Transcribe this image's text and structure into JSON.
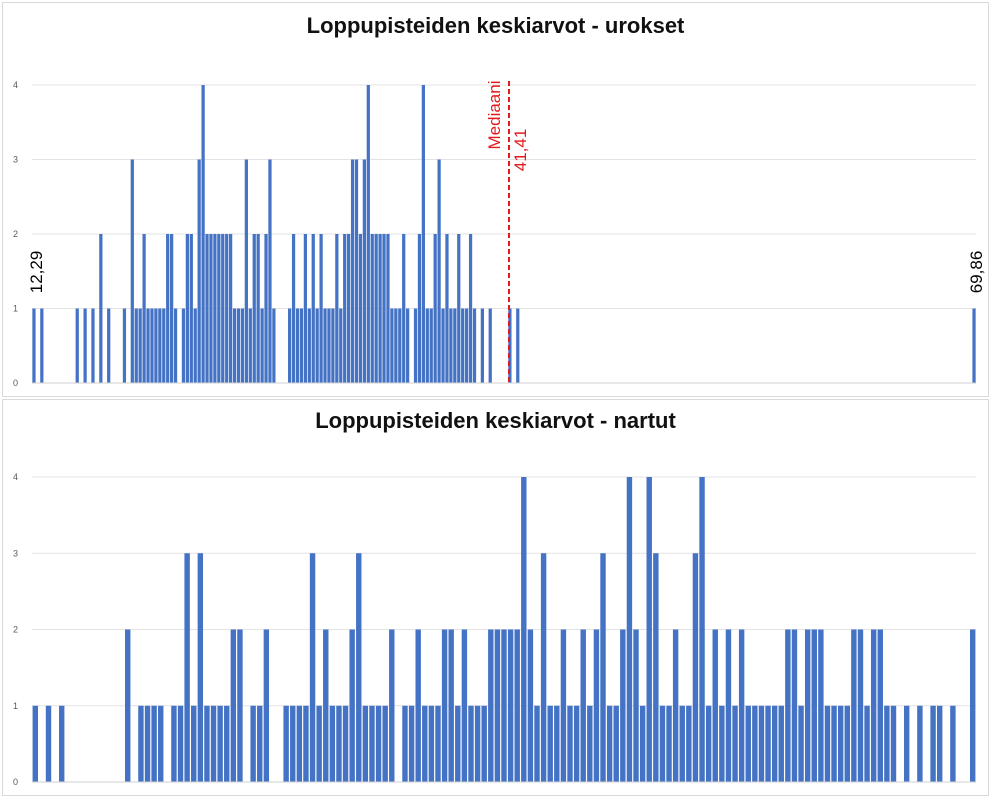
{
  "chart_data": [
    {
      "type": "bar",
      "title": "Loppupisteiden keskiarvot - urokset",
      "ylim": [
        0,
        4
      ],
      "y_ticks": [
        "0",
        "1",
        "2",
        "3",
        "4"
      ],
      "grid": true,
      "bar_color": "#4472c4",
      "values": [
        1,
        0,
        1,
        0,
        0,
        0,
        0,
        0,
        0,
        0,
        0,
        1,
        0,
        1,
        0,
        1,
        0,
        2,
        0,
        1,
        0,
        0,
        0,
        1,
        0,
        3,
        1,
        1,
        2,
        1,
        1,
        1,
        1,
        1,
        2,
        2,
        1,
        0,
        1,
        2,
        2,
        1,
        3,
        4,
        2,
        2,
        2,
        2,
        2,
        2,
        2,
        1,
        1,
        1,
        3,
        1,
        2,
        2,
        1,
        2,
        3,
        1,
        0,
        0,
        0,
        1,
        2,
        1,
        1,
        2,
        1,
        2,
        1,
        2,
        1,
        1,
        1,
        2,
        1,
        2,
        2,
        3,
        3,
        2,
        3,
        4,
        2,
        2,
        2,
        2,
        2,
        1,
        1,
        1,
        2,
        1,
        0,
        1,
        2,
        4,
        1,
        1,
        2,
        3,
        1,
        2,
        1,
        1,
        2,
        1,
        1,
        2,
        1,
        0,
        1,
        0,
        1,
        0,
        0,
        0,
        0,
        1,
        0,
        1,
        0,
        0,
        0,
        0,
        0,
        0,
        0,
        0,
        0,
        0,
        0,
        0,
        0,
        0,
        0,
        0,
        0,
        0,
        0,
        0,
        0,
        0,
        0,
        0,
        0,
        0,
        0,
        0,
        0,
        0,
        0,
        0,
        0,
        0,
        0,
        0,
        0,
        0,
        0,
        0,
        0,
        0,
        0,
        0,
        0,
        0,
        0,
        0,
        0,
        0,
        0,
        0,
        0,
        0,
        0,
        0,
        0,
        0,
        0,
        0,
        0,
        0,
        0,
        0,
        0,
        0,
        0,
        0,
        0,
        0,
        0,
        0,
        0,
        0,
        0,
        0,
        0,
        0,
        0,
        0,
        0,
        0,
        0,
        0,
        0,
        0,
        0,
        0,
        0,
        0,
        0,
        0,
        0,
        0,
        0,
        0,
        0,
        0,
        0,
        0,
        0,
        0,
        0,
        0,
        0,
        0,
        0,
        0,
        0,
        0,
        0,
        0,
        0,
        0,
        0,
        1
      ],
      "min_label": "12,29",
      "max_label": "69,86",
      "median": {
        "label": "Mediaani",
        "value": "41,41",
        "position": 0.508,
        "color": "#e31a1c"
      }
    },
    {
      "type": "bar",
      "title": "Loppupisteiden keskiarvot - nartut",
      "ylim": [
        0,
        4
      ],
      "y_ticks": [
        "0",
        "1",
        "2",
        "3",
        "4"
      ],
      "grid": true,
      "bar_color": "#4472c4",
      "values": [
        1,
        0,
        1,
        0,
        1,
        0,
        0,
        0,
        0,
        0,
        0,
        0,
        0,
        0,
        2,
        0,
        1,
        1,
        1,
        1,
        0,
        1,
        1,
        3,
        1,
        3,
        1,
        1,
        1,
        1,
        2,
        2,
        0,
        1,
        1,
        2,
        0,
        0,
        1,
        1,
        1,
        1,
        3,
        1,
        2,
        1,
        1,
        1,
        2,
        3,
        1,
        1,
        1,
        1,
        2,
        0,
        1,
        1,
        2,
        1,
        1,
        1,
        2,
        2,
        1,
        2,
        1,
        1,
        1,
        2,
        2,
        2,
        2,
        2,
        4,
        2,
        1,
        3,
        1,
        1,
        2,
        1,
        1,
        2,
        1,
        2,
        3,
        1,
        1,
        2,
        4,
        2,
        1,
        4,
        3,
        1,
        1,
        2,
        1,
        1,
        3,
        4,
        1,
        2,
        1,
        2,
        1,
        2,
        1,
        1,
        1,
        1,
        1,
        1,
        2,
        2,
        1,
        2,
        2,
        2,
        1,
        1,
        1,
        1,
        2,
        2,
        1,
        2,
        2,
        1,
        1,
        0,
        1,
        0,
        1,
        0,
        1,
        1,
        0,
        1,
        0,
        0,
        2
      ]
    }
  ]
}
